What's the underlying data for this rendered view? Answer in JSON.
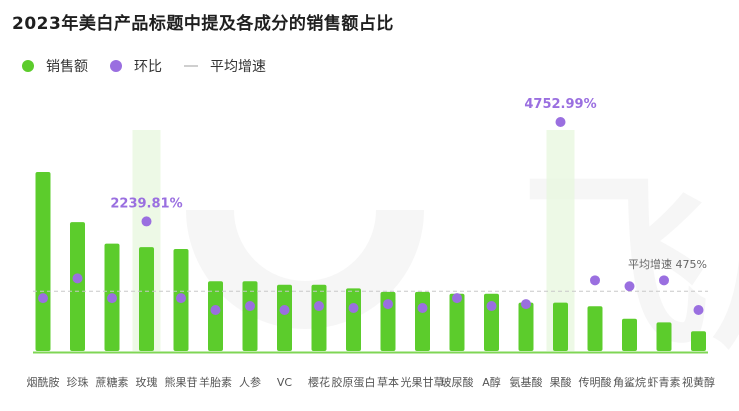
{
  "chart_title": "2023年美白产品标题中提及各成分的销售额占比",
  "legend": [
    {
      "label": "销售额",
      "kind": "dot",
      "color": "#5ccc2c"
    },
    {
      "label": "环比",
      "kind": "dot",
      "color": "#9a6fe0"
    },
    {
      "label": "平均增速",
      "kind": "line",
      "color": "#cfcfcf"
    }
  ],
  "watermark": "飞瓜",
  "chart_data": {
    "type": "bar",
    "title": "2023年美白产品标题中提及各成分的销售额占比",
    "categories": [
      "烟酰胺",
      "珍珠",
      "蔗糖素",
      "玫瑰",
      "熊果苷",
      "羊胎素",
      "人参",
      "VC",
      "樱花",
      "胶原蛋白",
      "草本",
      "光果甘草",
      "玻尿酸",
      "A醇",
      "氨基酸",
      "果酸",
      "传明酸",
      "角鲨烷",
      "虾青素",
      "视黄醇"
    ],
    "series": [
      {
        "name": "销售额",
        "type": "bar",
        "values": [
          100,
          72,
          60,
          58,
          57,
          39,
          39,
          37,
          37,
          35,
          33,
          33,
          32,
          32,
          27,
          27,
          25,
          18,
          16,
          11
        ]
      },
      {
        "name": "环比",
        "type": "scatter",
        "values": [
          300,
          800,
          300,
          2239.81,
          300,
          0,
          100,
          0,
          100,
          50,
          150,
          50,
          300,
          100,
          150,
          4752.99,
          750,
          600,
          750,
          0
        ]
      }
    ],
    "bar_unit": "relative",
    "ratio_unit": "%",
    "annotations": [
      {
        "category": "玫瑰",
        "label": "2239.81%"
      },
      {
        "category": "果酸",
        "label": "4752.99%"
      }
    ],
    "highlighted_categories": [
      "玫瑰",
      "果酸"
    ],
    "reference_line": {
      "label": "平均增速",
      "value_label": "475%",
      "value": 475
    },
    "ratio_axis": [
      0,
      4752.99
    ]
  }
}
